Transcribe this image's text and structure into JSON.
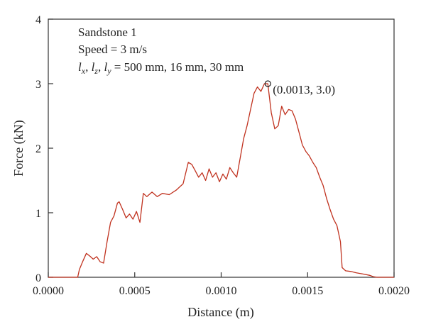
{
  "chart_data": {
    "type": "line",
    "xlabel": "Distance (m)",
    "ylabel": "Force (kN)",
    "xlim": [
      0.0,
      0.002
    ],
    "ylim": [
      0,
      4
    ],
    "x_ticks": [
      "0.0000",
      "0.0005",
      "0.0010",
      "0.0015",
      "0.0020"
    ],
    "x_tick_values": [
      0.0,
      0.0005,
      0.001,
      0.0015,
      0.002
    ],
    "y_ticks": [
      "0",
      "1",
      "2",
      "3",
      "4"
    ],
    "y_tick_values": [
      0,
      1,
      2,
      3,
      4
    ],
    "grid": false,
    "legend": "none",
    "annotations": {
      "line1": "Sandstone 1",
      "line2": "Speed = 3 m/s",
      "dims": {
        "sym1": "l",
        "sub1": "x",
        "sep1": ", ",
        "sym2": "l",
        "sub2": "z",
        "sep2": ", ",
        "sym3": "l",
        "sub3": "y",
        "rest": " = 500 mm, 16 mm, 30 mm"
      },
      "peak_label": "(0.0013, 3.0)",
      "peak_point": {
        "x": 0.00127,
        "y": 3.0
      }
    },
    "series": [
      {
        "color": "#c0321f",
        "x": [
          0.0,
          0.00017,
          0.00018,
          0.0002,
          0.00022,
          0.00024,
          0.00026,
          0.00028,
          0.0003,
          0.00032,
          0.00034,
          0.00036,
          0.00038,
          0.0004,
          0.00041,
          0.00043,
          0.00045,
          0.00047,
          0.00049,
          0.00051,
          0.00053,
          0.00055,
          0.00057,
          0.0006,
          0.00063,
          0.00066,
          0.0007,
          0.00074,
          0.00078,
          0.00081,
          0.00083,
          0.00085,
          0.00087,
          0.00089,
          0.00091,
          0.00093,
          0.00095,
          0.00097,
          0.00099,
          0.00101,
          0.00103,
          0.00105,
          0.00107,
          0.00109,
          0.00111,
          0.00113,
          0.00115,
          0.00117,
          0.00119,
          0.00121,
          0.00123,
          0.00125,
          0.00127,
          0.00129,
          0.00131,
          0.00133,
          0.00135,
          0.00137,
          0.00139,
          0.00141,
          0.00143,
          0.00145,
          0.00147,
          0.00149,
          0.00151,
          0.00153,
          0.00155,
          0.00157,
          0.00159,
          0.00161,
          0.00163,
          0.00165,
          0.00167,
          0.00169,
          0.0017,
          0.00172,
          0.00175,
          0.00178,
          0.00182,
          0.00186,
          0.00188,
          0.0019,
          0.002
        ],
        "y": [
          0.0,
          0.0,
          0.12,
          0.25,
          0.37,
          0.33,
          0.28,
          0.32,
          0.24,
          0.22,
          0.55,
          0.85,
          0.95,
          1.15,
          1.17,
          1.05,
          0.92,
          0.98,
          0.9,
          1.02,
          0.85,
          1.3,
          1.25,
          1.32,
          1.25,
          1.3,
          1.28,
          1.35,
          1.45,
          1.78,
          1.75,
          1.65,
          1.55,
          1.62,
          1.5,
          1.68,
          1.55,
          1.62,
          1.48,
          1.6,
          1.52,
          1.7,
          1.62,
          1.55,
          1.85,
          2.15,
          2.35,
          2.6,
          2.85,
          2.95,
          2.88,
          3.0,
          3.0,
          2.55,
          2.3,
          2.35,
          2.65,
          2.52,
          2.6,
          2.58,
          2.45,
          2.25,
          2.05,
          1.95,
          1.88,
          1.78,
          1.7,
          1.55,
          1.42,
          1.22,
          1.05,
          0.9,
          0.8,
          0.55,
          0.15,
          0.1,
          0.09,
          0.07,
          0.05,
          0.03,
          0.01,
          0.0,
          0.0
        ]
      }
    ]
  }
}
